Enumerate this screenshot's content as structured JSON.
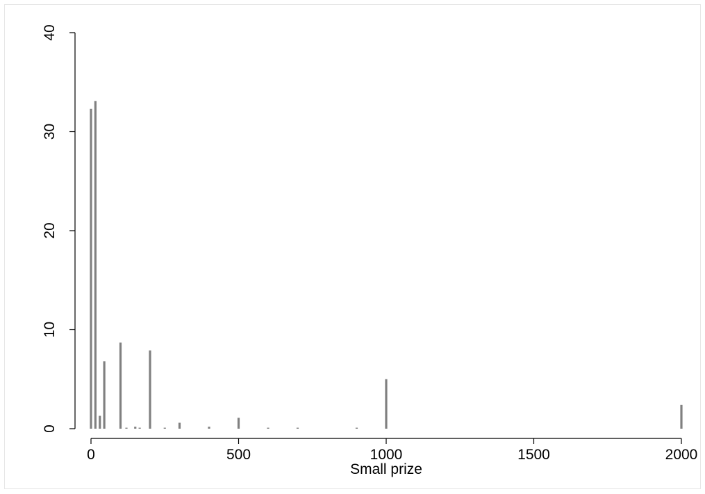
{
  "chart_data": {
    "type": "bar",
    "title": "",
    "xlabel": "Small prize",
    "ylabel": "",
    "xlim": [
      -15,
      2015
    ],
    "ylim": [
      0,
      40
    ],
    "bar_width": 15,
    "x_ticks": [
      0,
      500,
      1000,
      1500,
      2000
    ],
    "x_tick_labels": [
      "0",
      "500",
      "1000",
      "1500",
      "2000"
    ],
    "y_ticks": [
      0,
      10,
      20,
      30,
      40
    ],
    "y_tick_labels": [
      "0",
      "10",
      "20",
      "30",
      "40"
    ],
    "grid": false,
    "x": [
      0,
      15,
      30,
      45,
      100,
      120,
      150,
      165,
      200,
      250,
      300,
      400,
      500,
      600,
      700,
      900,
      1000,
      2000
    ],
    "values": [
      32.3,
      33.1,
      1.3,
      6.8,
      8.7,
      0.1,
      0.2,
      0.1,
      7.9,
      0.1,
      0.6,
      0.2,
      1.1,
      0.1,
      0.1,
      0.1,
      5.0,
      2.4
    ]
  }
}
